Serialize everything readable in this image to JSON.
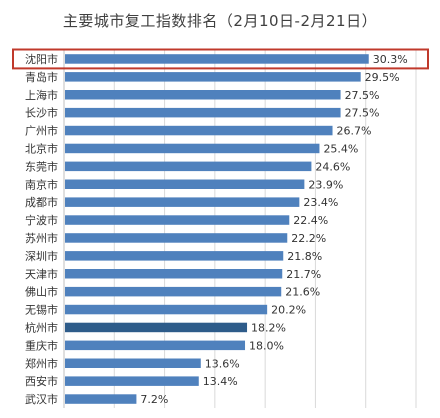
{
  "chart_data": {
    "type": "bar",
    "orientation": "horizontal",
    "title": "主要城市复工指数排名（2月10日-2月21日）",
    "categories": [
      "沈阳市",
      "青岛市",
      "上海市",
      "长沙市",
      "广州市",
      "北京市",
      "东莞市",
      "南京市",
      "成都市",
      "宁波市",
      "苏州市",
      "深圳市",
      "天津市",
      "佛山市",
      "无锡市",
      "杭州市",
      "重庆市",
      "郑州市",
      "西安市",
      "武汉市"
    ],
    "values": [
      30.3,
      29.5,
      27.5,
      27.5,
      26.7,
      25.4,
      24.6,
      23.9,
      23.4,
      22.4,
      22.2,
      21.8,
      21.7,
      21.6,
      20.2,
      18.2,
      18.0,
      13.6,
      13.4,
      7.2
    ],
    "value_labels": [
      "30.3%",
      "29.5%",
      "27.5%",
      "27.5%",
      "26.7%",
      "25.4%",
      "24.6%",
      "23.9%",
      "23.4%",
      "22.4%",
      "22.2%",
      "21.8%",
      "21.7%",
      "21.6%",
      "20.2%",
      "18.2%",
      "18.0%",
      "13.6%",
      "13.4%",
      "7.2%"
    ],
    "unit": "%",
    "xlim": [
      0,
      35
    ],
    "grid": "vertical",
    "highlighted_categories": [
      "沈阳市"
    ],
    "emphasized_categories": [
      "杭州市"
    ],
    "colors": {
      "bar": "#4f81bd",
      "bar_emphasis": "#2e5c8a",
      "highlight_box": "#c0392b",
      "grid": "#d9d9d9"
    }
  }
}
